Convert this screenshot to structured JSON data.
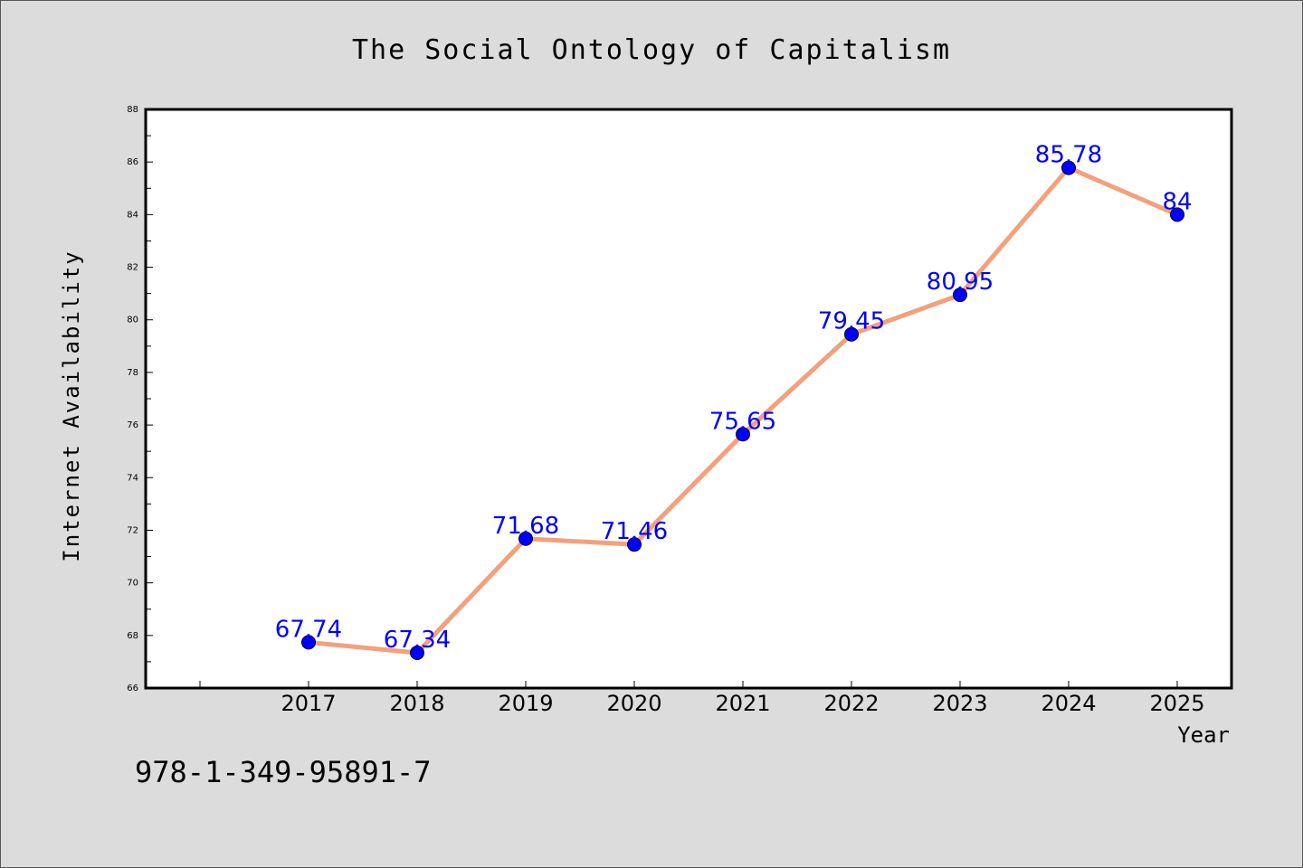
{
  "chart_data": {
    "type": "line",
    "title": "The Social Ontology of Capitalism",
    "xlabel": "Year",
    "ylabel": "Internet Availability",
    "categories": [
      "2017",
      "2018",
      "2019",
      "2020",
      "2021",
      "2022",
      "2023",
      "2024",
      "2025"
    ],
    "values": [
      67.74,
      67.34,
      71.68,
      71.46,
      75.65,
      79.45,
      80.95,
      85.78,
      84
    ],
    "value_labels": [
      "67.74",
      "67.34",
      "71.68",
      "71.46",
      "75.65",
      "79.45",
      "80.95",
      "85.78",
      "84"
    ],
    "ylim": [
      66,
      88
    ],
    "y_ticks": [
      "66",
      "68",
      "70",
      "72",
      "74",
      "76",
      "78",
      "80",
      "82",
      "84",
      "86",
      "88"
    ],
    "grid": false,
    "legend": "none",
    "line_color": "#f4a07c",
    "marker_color": "#0000ff",
    "label_color": "#0000ff"
  },
  "footer": {
    "isbn": "978-1-349-95891-7"
  },
  "colors": {
    "background": "#dcdcdc",
    "plot_background": "#ffffff",
    "axis": "#000000"
  }
}
